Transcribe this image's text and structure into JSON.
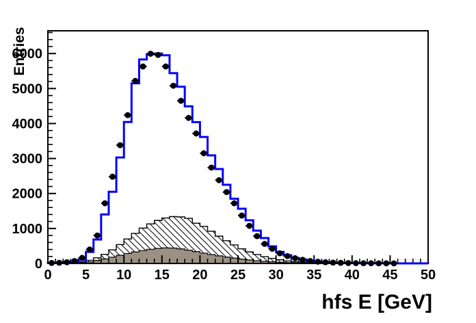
{
  "window": {
    "background": "#ffffff",
    "axis_color": "#000000"
  },
  "chart_data": {
    "type": "bar",
    "variant": "step-histogram-overlay",
    "title": "",
    "xlabel": "hfs E [GeV]",
    "ylabel": "Entries",
    "xlim": [
      0,
      50
    ],
    "ylim": [
      0,
      6650
    ],
    "bin_width_gev": 1,
    "n_bins": 50,
    "x_major_ticks": [
      0,
      5,
      10,
      15,
      20,
      25,
      30,
      35,
      40,
      45,
      50
    ],
    "x_minor_tick_step": 1,
    "y_major_ticks": [
      0,
      1000,
      2000,
      3000,
      4000,
      5000,
      6000
    ],
    "y_minor_tick_step": 200,
    "grid": false,
    "legend": "none",
    "series": [
      {
        "name": "background-hatched-histogram",
        "style": "hatched-fill",
        "fill": "#ffffff",
        "hatch_color": "#000000",
        "hatch_direction": "diagonal-down",
        "outline_color": "#000000",
        "values": [
          0,
          0,
          5,
          20,
          45,
          90,
          160,
          260,
          390,
          540,
          700,
          860,
          1010,
          1130,
          1230,
          1300,
          1340,
          1330,
          1290,
          1150,
          1060,
          920,
          780,
          650,
          530,
          420,
          330,
          255,
          195,
          145,
          105,
          72,
          48,
          30,
          18,
          10,
          6,
          3,
          2,
          1,
          0,
          0,
          0,
          0,
          0,
          0,
          0,
          0,
          0,
          0
        ]
      },
      {
        "name": "background-gray-histogram",
        "style": "solid-fill",
        "fill": "#9b9082",
        "outline_color": "#000000",
        "values": [
          0,
          0,
          2,
          8,
          20,
          45,
          85,
          130,
          180,
          235,
          285,
          330,
          370,
          405,
          430,
          445,
          440,
          415,
          380,
          340,
          295,
          255,
          218,
          183,
          152,
          124,
          100,
          79,
          61,
          46,
          34,
          25,
          17,
          11,
          7,
          4,
          2,
          1,
          0,
          0,
          0,
          0,
          0,
          0,
          0,
          0,
          0,
          0,
          0,
          0
        ]
      },
      {
        "name": "mc-total-step-histogram",
        "style": "step-outline",
        "color": "#0000ff",
        "line_width": 3,
        "values": [
          15,
          25,
          45,
          60,
          100,
          330,
          685,
          1400,
          2050,
          3030,
          4045,
          5150,
          5830,
          5980,
          6000,
          5950,
          5440,
          5050,
          4490,
          4040,
          3615,
          3090,
          2700,
          2250,
          1850,
          1565,
          1235,
          940,
          725,
          490,
          330,
          235,
          160,
          115,
          80,
          55,
          40,
          28,
          20,
          14,
          10,
          8,
          6,
          5,
          4,
          3,
          3,
          2,
          2,
          2
        ]
      },
      {
        "name": "data-points",
        "style": "scatter-markers",
        "marker": "filled-circle",
        "color": "#000000",
        "x_centers_start": 0.5,
        "x_step": 1,
        "values": [
          15,
          20,
          35,
          70,
          160,
          400,
          800,
          1720,
          2480,
          3380,
          4240,
          5220,
          5630,
          5995,
          5960,
          5630,
          5080,
          4650,
          4160,
          3715,
          3150,
          2740,
          2380,
          2040,
          1720,
          1370,
          1075,
          780,
          560,
          420,
          290,
          210,
          150,
          105,
          70,
          50,
          35,
          25,
          18,
          12,
          10,
          8,
          6,
          5,
          4,
          3
        ]
      }
    ]
  }
}
